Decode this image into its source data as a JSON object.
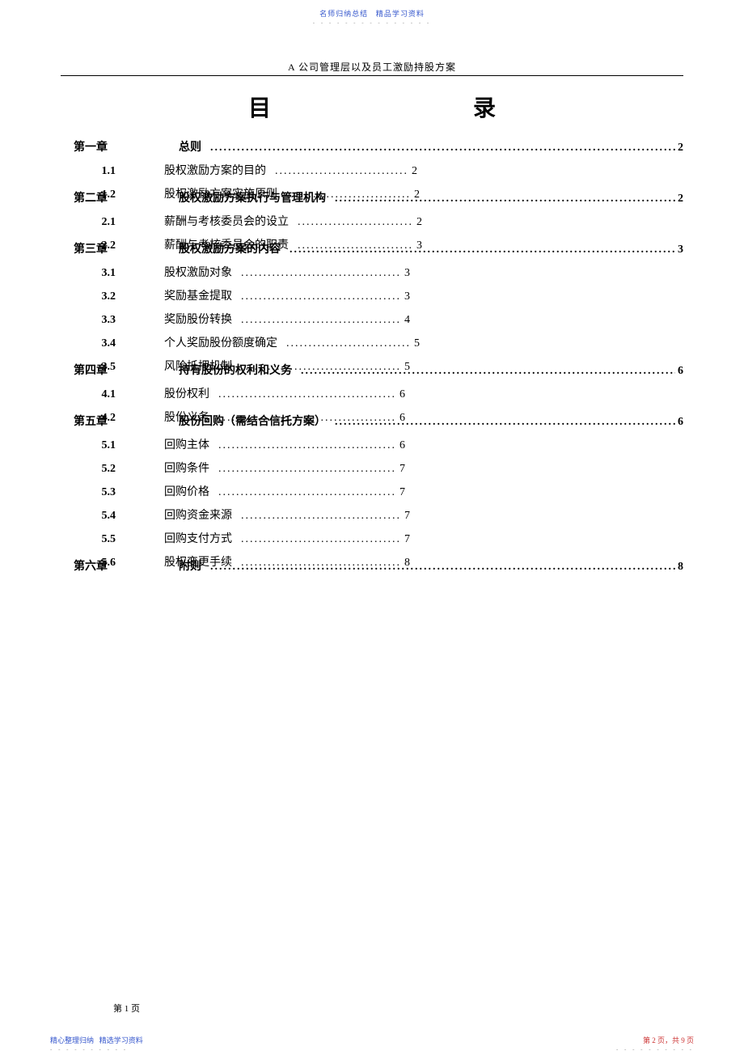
{
  "header": {
    "text_left": "名师归纳总结",
    "text_right": "精品学习资料",
    "color": "#3355cc"
  },
  "subtitle": "A 公司管理层以及员工激励持股方案",
  "main_title": {
    "char1": "目",
    "char2": "录"
  },
  "toc": [
    {
      "type": "chapter",
      "num": "第一章",
      "text": "总则",
      "page": "2",
      "full": true,
      "sub": [
        {
          "num": "1.1",
          "text": "股权激励方案的目的",
          "page": "2",
          "full": false
        },
        {
          "num": "1.2",
          "text": "股权激励方案实施原则",
          "page": "2",
          "full": false
        }
      ]
    },
    {
      "type": "chapter",
      "num": "第二章",
      "text": "股权激励方案执行与管理机构",
      "page": "2",
      "full": true,
      "sub": [
        {
          "num": "2.1",
          "text": "薪酬与考核委员会的设立",
          "page": "2",
          "full": false
        },
        {
          "num": "2.2",
          "text": "薪酬与考核委员会的职责",
          "page": "3",
          "full": false
        }
      ]
    },
    {
      "type": "chapter",
      "num": "第三章",
      "text": "股权激励方案的内容",
      "page": "3",
      "full": true,
      "sub": [
        {
          "num": "3.1",
          "text": "股权激励对象",
          "page": "3",
          "full": false
        },
        {
          "num": "3.2",
          "text": "奖励基金提取",
          "page": "3",
          "full": false
        },
        {
          "num": "3.3",
          "text": "奖励股份转换",
          "page": "4",
          "full": false
        },
        {
          "num": "3.4",
          "text": "个人奖励股份额度确定",
          "page": "5",
          "full": false
        },
        {
          "num": "3.5",
          "text": "风险抵押机制",
          "page": "5",
          "full": false
        }
      ]
    },
    {
      "type": "chapter",
      "num": "第四章",
      "text": "持有股份的权利和义务",
      "page": "6",
      "full": true,
      "sub": [
        {
          "num": "4.1",
          "text": "股份权利",
          "page": "6",
          "full": false
        },
        {
          "num": "4.2",
          "text": "股份义务",
          "page": "6",
          "full": false
        }
      ]
    },
    {
      "type": "chapter",
      "num": "第五章",
      "text": "股份回购（需结合信托方案）",
      "page": "6",
      "full": true,
      "sub": [
        {
          "num": "5.1",
          "text": "回购主体",
          "page": "6",
          "full": false
        },
        {
          "num": "5.2",
          "text": "回购条件",
          "page": "7",
          "full": false
        },
        {
          "num": "5.3",
          "text": "回购价格",
          "page": "7",
          "full": false
        },
        {
          "num": "5.4",
          "text": "回购资金来源",
          "page": "7",
          "full": false
        },
        {
          "num": "5.5",
          "text": "回购支付方式",
          "page": "7",
          "full": false
        },
        {
          "num": "5.6",
          "text": "股权变更手续",
          "page": "8",
          "full": false
        }
      ]
    },
    {
      "type": "chapter",
      "num": "第六章",
      "text": "附则",
      "page": "8",
      "full": true,
      "sub": []
    }
  ],
  "page_number": "第 1 页",
  "footer": {
    "left_1": "精心整理归纳",
    "left_2": "精选学习资料",
    "left_color": "#3355cc",
    "right": "第 2 页，共 9 页",
    "right_color": "#cc3333"
  },
  "dots_long": "............................................................................................................................",
  "dots_pattern": "- - - - - - - - - - - - - - -"
}
